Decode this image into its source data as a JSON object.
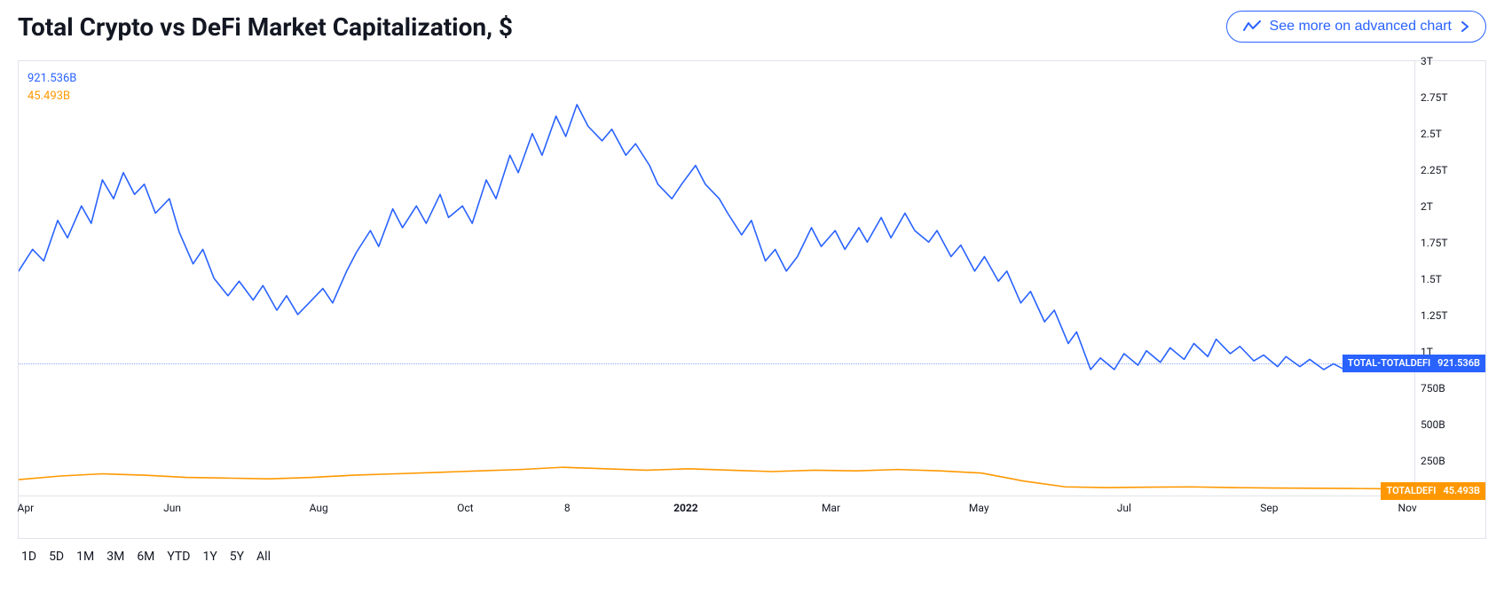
{
  "title": "Total Crypto vs DeFi Market Capitalization, $",
  "adv_button": {
    "label": "See more on advanced chart"
  },
  "colors": {
    "series1": "#2962ff",
    "series2": "#ff9800",
    "border": "#e0e3eb",
    "text": "#131722",
    "bg": "#ffffff"
  },
  "legend": {
    "s1_value": "921.536B",
    "s2_value": "45.493B"
  },
  "chart": {
    "type": "line",
    "y_min": 0,
    "y_max": 3000,
    "y_ticks": [
      {
        "v": 3000,
        "label": "3T"
      },
      {
        "v": 2750,
        "label": "2.75T"
      },
      {
        "v": 2500,
        "label": "2.5T"
      },
      {
        "v": 2250,
        "label": "2.25T"
      },
      {
        "v": 2000,
        "label": "2T"
      },
      {
        "v": 1750,
        "label": "1.75T"
      },
      {
        "v": 1500,
        "label": "1.5T"
      },
      {
        "v": 1250,
        "label": "1.25T"
      },
      {
        "v": 1000,
        "label": "1T"
      },
      {
        "v": 750,
        "label": "750B"
      },
      {
        "v": 500,
        "label": "500B"
      },
      {
        "v": 250,
        "label": "250B"
      }
    ],
    "x_ticks": [
      {
        "pos": 0.005,
        "label": "Apr",
        "bold": false
      },
      {
        "pos": 0.11,
        "label": "Jun",
        "bold": false
      },
      {
        "pos": 0.215,
        "label": "Aug",
        "bold": false
      },
      {
        "pos": 0.32,
        "label": "Oct",
        "bold": false
      },
      {
        "pos": 0.393,
        "label": "8",
        "bold": false
      },
      {
        "pos": 0.478,
        "label": "2022",
        "bold": true
      },
      {
        "pos": 0.582,
        "label": "Mar",
        "bold": false
      },
      {
        "pos": 0.688,
        "label": "May",
        "bold": false
      },
      {
        "pos": 0.792,
        "label": "Jul",
        "bold": false
      },
      {
        "pos": 0.896,
        "label": "Sep",
        "bold": false
      },
      {
        "pos": 0.995,
        "label": "Nov",
        "bold": false
      }
    ],
    "series1": {
      "name": "TOTAL-TOTALDEFI",
      "current": 921.536,
      "current_label": "921.536B",
      "color": "#2962ff",
      "line_width": 1.6,
      "points": [
        [
          0.0,
          1550
        ],
        [
          0.01,
          1700
        ],
        [
          0.018,
          1620
        ],
        [
          0.028,
          1900
        ],
        [
          0.035,
          1780
        ],
        [
          0.045,
          2000
        ],
        [
          0.052,
          1880
        ],
        [
          0.06,
          2180
        ],
        [
          0.068,
          2050
        ],
        [
          0.075,
          2230
        ],
        [
          0.083,
          2080
        ],
        [
          0.09,
          2150
        ],
        [
          0.098,
          1950
        ],
        [
          0.108,
          2050
        ],
        [
          0.115,
          1820
        ],
        [
          0.125,
          1600
        ],
        [
          0.132,
          1700
        ],
        [
          0.14,
          1500
        ],
        [
          0.15,
          1380
        ],
        [
          0.158,
          1480
        ],
        [
          0.168,
          1350
        ],
        [
          0.175,
          1450
        ],
        [
          0.185,
          1280
        ],
        [
          0.192,
          1380
        ],
        [
          0.2,
          1250
        ],
        [
          0.208,
          1330
        ],
        [
          0.218,
          1430
        ],
        [
          0.225,
          1330
        ],
        [
          0.235,
          1550
        ],
        [
          0.242,
          1680
        ],
        [
          0.252,
          1830
        ],
        [
          0.258,
          1720
        ],
        [
          0.268,
          1980
        ],
        [
          0.275,
          1850
        ],
        [
          0.285,
          2000
        ],
        [
          0.292,
          1880
        ],
        [
          0.302,
          2080
        ],
        [
          0.308,
          1920
        ],
        [
          0.318,
          2000
        ],
        [
          0.325,
          1880
        ],
        [
          0.335,
          2180
        ],
        [
          0.342,
          2050
        ],
        [
          0.352,
          2350
        ],
        [
          0.358,
          2230
        ],
        [
          0.368,
          2500
        ],
        [
          0.375,
          2350
        ],
        [
          0.385,
          2620
        ],
        [
          0.392,
          2480
        ],
        [
          0.4,
          2700
        ],
        [
          0.408,
          2550
        ],
        [
          0.418,
          2450
        ],
        [
          0.425,
          2530
        ],
        [
          0.435,
          2350
        ],
        [
          0.442,
          2430
        ],
        [
          0.452,
          2280
        ],
        [
          0.458,
          2150
        ],
        [
          0.468,
          2050
        ],
        [
          0.475,
          2150
        ],
        [
          0.485,
          2280
        ],
        [
          0.492,
          2150
        ],
        [
          0.502,
          2050
        ],
        [
          0.508,
          1950
        ],
        [
          0.518,
          1800
        ],
        [
          0.525,
          1900
        ],
        [
          0.535,
          1620
        ],
        [
          0.542,
          1700
        ],
        [
          0.55,
          1550
        ],
        [
          0.558,
          1650
        ],
        [
          0.568,
          1850
        ],
        [
          0.575,
          1720
        ],
        [
          0.585,
          1830
        ],
        [
          0.592,
          1700
        ],
        [
          0.602,
          1850
        ],
        [
          0.608,
          1750
        ],
        [
          0.618,
          1920
        ],
        [
          0.625,
          1780
        ],
        [
          0.635,
          1950
        ],
        [
          0.642,
          1830
        ],
        [
          0.652,
          1750
        ],
        [
          0.658,
          1830
        ],
        [
          0.668,
          1650
        ],
        [
          0.675,
          1730
        ],
        [
          0.685,
          1550
        ],
        [
          0.692,
          1650
        ],
        [
          0.702,
          1480
        ],
        [
          0.708,
          1550
        ],
        [
          0.718,
          1330
        ],
        [
          0.725,
          1410
        ],
        [
          0.735,
          1200
        ],
        [
          0.742,
          1280
        ],
        [
          0.752,
          1050
        ],
        [
          0.758,
          1130
        ],
        [
          0.768,
          870
        ],
        [
          0.775,
          950
        ],
        [
          0.785,
          870
        ],
        [
          0.792,
          980
        ],
        [
          0.802,
          900
        ],
        [
          0.808,
          1000
        ],
        [
          0.818,
          920
        ],
        [
          0.825,
          1020
        ],
        [
          0.835,
          940
        ],
        [
          0.842,
          1050
        ],
        [
          0.852,
          960
        ],
        [
          0.858,
          1080
        ],
        [
          0.868,
          980
        ],
        [
          0.875,
          1030
        ],
        [
          0.885,
          930
        ],
        [
          0.892,
          970
        ],
        [
          0.902,
          890
        ],
        [
          0.908,
          960
        ],
        [
          0.918,
          890
        ],
        [
          0.925,
          940
        ],
        [
          0.935,
          870
        ],
        [
          0.942,
          910
        ],
        [
          0.952,
          860
        ],
        [
          0.958,
          900
        ],
        [
          0.968,
          860
        ],
        [
          0.975,
          930
        ],
        [
          0.985,
          890
        ],
        [
          0.992,
          940
        ],
        [
          1.0,
          922
        ]
      ]
    },
    "series2": {
      "name": "TOTALDEFI",
      "current": 45.493,
      "current_label": "45.493B",
      "color": "#ff9800",
      "line_width": 1.6,
      "points": [
        [
          0.0,
          110
        ],
        [
          0.03,
          135
        ],
        [
          0.06,
          150
        ],
        [
          0.09,
          140
        ],
        [
          0.12,
          125
        ],
        [
          0.15,
          120
        ],
        [
          0.18,
          115
        ],
        [
          0.21,
          125
        ],
        [
          0.24,
          140
        ],
        [
          0.27,
          150
        ],
        [
          0.3,
          160
        ],
        [
          0.33,
          170
        ],
        [
          0.36,
          180
        ],
        [
          0.39,
          195
        ],
        [
          0.42,
          185
        ],
        [
          0.45,
          175
        ],
        [
          0.48,
          185
        ],
        [
          0.51,
          175
        ],
        [
          0.54,
          165
        ],
        [
          0.57,
          175
        ],
        [
          0.6,
          170
        ],
        [
          0.63,
          180
        ],
        [
          0.66,
          170
        ],
        [
          0.69,
          155
        ],
        [
          0.72,
          100
        ],
        [
          0.75,
          60
        ],
        [
          0.78,
          55
        ],
        [
          0.81,
          58
        ],
        [
          0.84,
          60
        ],
        [
          0.87,
          55
        ],
        [
          0.9,
          52
        ],
        [
          0.93,
          50
        ],
        [
          0.96,
          48
        ],
        [
          0.99,
          46
        ],
        [
          1.0,
          45
        ]
      ]
    },
    "price_tags": [
      {
        "series": "s1",
        "label_left": "TOTAL-TOTALDEFI",
        "label_right": "921.536B",
        "value": 921.536
      },
      {
        "series": "s2",
        "label_left": "TOTALDEFI",
        "label_right": "45.493B",
        "value": 45.493
      }
    ]
  },
  "ranges": [
    "1D",
    "5D",
    "1M",
    "3M",
    "6M",
    "YTD",
    "1Y",
    "5Y",
    "All"
  ]
}
